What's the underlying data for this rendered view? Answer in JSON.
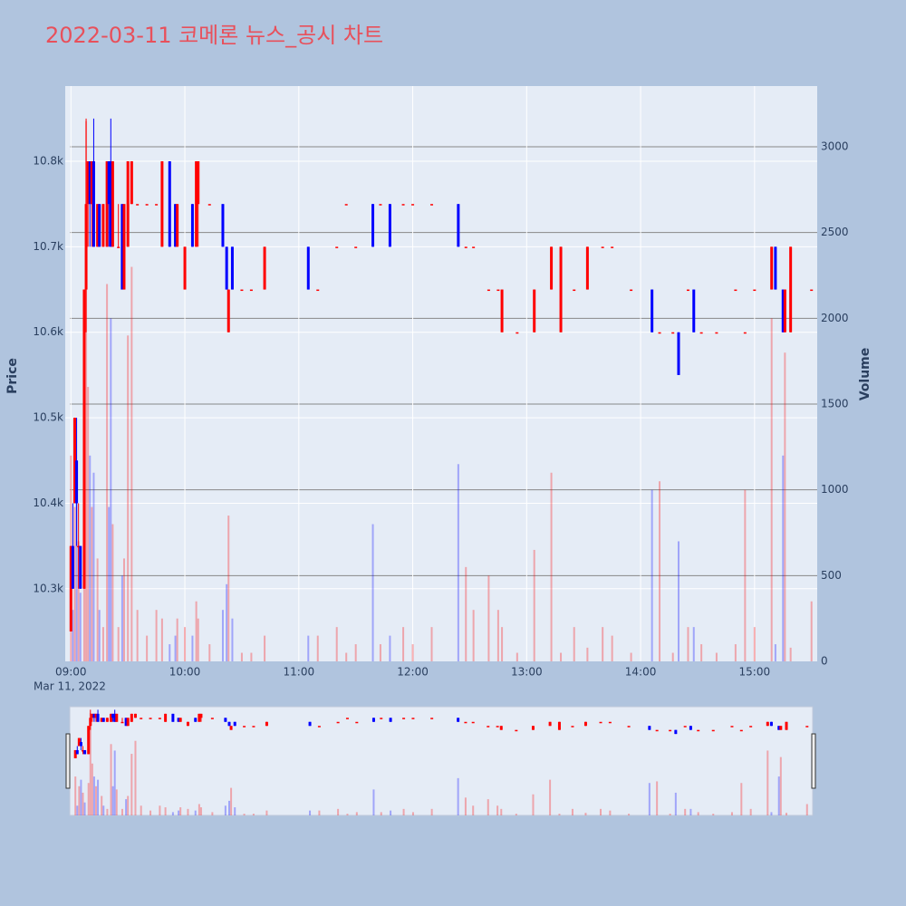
{
  "chart_data": {
    "type": "candlestick",
    "title": "2022-03-11 코메론 뉴스_공시 차트",
    "ylabel": "Price",
    "y2label": "Volume",
    "x_date_label": "Mar 11, 2022",
    "increasing_color": "#ff0000",
    "decreasing_color": "#0000ff",
    "xlim": [
      "2022-03-11 08:57",
      "2022-03-11 15:33"
    ],
    "xticks": [
      {
        "value": "2022-03-11 09:00",
        "label": "09:00"
      },
      {
        "value": "2022-03-11 10:00",
        "label": "10:00"
      },
      {
        "value": "2022-03-11 11:00",
        "label": "11:00"
      },
      {
        "value": "2022-03-11 12:00",
        "label": "12:00"
      },
      {
        "value": "2022-03-11 13:00",
        "label": "13:00"
      },
      {
        "value": "2022-03-11 14:00",
        "label": "14:00"
      },
      {
        "value": "2022-03-11 15:00",
        "label": "15:00"
      }
    ],
    "ylim": [
      10215,
      10888
    ],
    "yticks": [
      {
        "value": 10300,
        "label": "10.3k"
      },
      {
        "value": 10400,
        "label": "10.4k"
      },
      {
        "value": 10500,
        "label": "10.5k"
      },
      {
        "value": 10600,
        "label": "10.6k"
      },
      {
        "value": 10700,
        "label": "10.7k"
      },
      {
        "value": 10800,
        "label": "10.8k"
      }
    ],
    "y2lim": [
      0,
      3354
    ],
    "y2ticks": [
      0,
      500,
      1000,
      1500,
      2000,
      2500,
      3000
    ],
    "rangeslider": true,
    "x": [
      "2022-03-11 09:00",
      "2022-03-11 09:01",
      "2022-03-11 09:02",
      "2022-03-11 09:03",
      "2022-03-11 09:04",
      "2022-03-11 09:05",
      "2022-03-11 09:07",
      "2022-03-11 09:08",
      "2022-03-11 09:09",
      "2022-03-11 09:10",
      "2022-03-11 09:11",
      "2022-03-11 09:12",
      "2022-03-11 09:14",
      "2022-03-11 09:15",
      "2022-03-11 09:17",
      "2022-03-11 09:19",
      "2022-03-11 09:20",
      "2022-03-11 09:21",
      "2022-03-11 09:22",
      "2022-03-11 09:25",
      "2022-03-11 09:27",
      "2022-03-11 09:28",
      "2022-03-11 09:30",
      "2022-03-11 09:32",
      "2022-03-11 09:35",
      "2022-03-11 09:40",
      "2022-03-11 09:45",
      "2022-03-11 09:48",
      "2022-03-11 09:52",
      "2022-03-11 09:55",
      "2022-03-11 09:56",
      "2022-03-11 10:00",
      "2022-03-11 10:04",
      "2022-03-11 10:06",
      "2022-03-11 10:07",
      "2022-03-11 10:13",
      "2022-03-11 10:20",
      "2022-03-11 10:22",
      "2022-03-11 10:23",
      "2022-03-11 10:25",
      "2022-03-11 10:30",
      "2022-03-11 10:35",
      "2022-03-11 10:42",
      "2022-03-11 11:05",
      "2022-03-11 11:10",
      "2022-03-11 11:20",
      "2022-03-11 11:25",
      "2022-03-11 11:30",
      "2022-03-11 11:39",
      "2022-03-11 11:43",
      "2022-03-11 11:48",
      "2022-03-11 11:55",
      "2022-03-11 12:00",
      "2022-03-11 12:10",
      "2022-03-11 12:24",
      "2022-03-11 12:28",
      "2022-03-11 12:32",
      "2022-03-11 12:40",
      "2022-03-11 12:45",
      "2022-03-11 12:47",
      "2022-03-11 12:55",
      "2022-03-11 13:04",
      "2022-03-11 13:13",
      "2022-03-11 13:18",
      "2022-03-11 13:25",
      "2022-03-11 13:32",
      "2022-03-11 13:40",
      "2022-03-11 13:45",
      "2022-03-11 13:55",
      "2022-03-11 14:06",
      "2022-03-11 14:10",
      "2022-03-11 14:17",
      "2022-03-11 14:20",
      "2022-03-11 14:25",
      "2022-03-11 14:28",
      "2022-03-11 14:32",
      "2022-03-11 14:40",
      "2022-03-11 14:50",
      "2022-03-11 14:55",
      "2022-03-11 15:00",
      "2022-03-11 15:09",
      "2022-03-11 15:11",
      "2022-03-11 15:15",
      "2022-03-11 15:16",
      "2022-03-11 15:19",
      "2022-03-11 15:30"
    ],
    "open": [
      10250,
      10350,
      10400,
      10450,
      10350,
      10350,
      10300,
      10650,
      10750,
      10800,
      10750,
      10800,
      10700,
      10750,
      10700,
      10700,
      10800,
      10800,
      10700,
      10700,
      10750,
      10650,
      10700,
      10750,
      10750,
      10750,
      10750,
      10700,
      10800,
      10750,
      10700,
      10650,
      10750,
      10700,
      10750,
      10750,
      10750,
      10700,
      10600,
      10700,
      10650,
      10650,
      10650,
      10700,
      10650,
      10700,
      10750,
      10700,
      10750,
      10750,
      10750,
      10750,
      10750,
      10750,
      10750,
      10700,
      10700,
      10650,
      10650,
      10600,
      10600,
      10600,
      10650,
      10600,
      10650,
      10650,
      10700,
      10700,
      10650,
      10650,
      10600,
      10600,
      10600,
      10650,
      10650,
      10600,
      10600,
      10650,
      10600,
      10650,
      10650,
      10700,
      10650,
      10600,
      10600,
      10650
    ],
    "high": [
      10350,
      10400,
      10500,
      10500,
      10400,
      10350,
      10650,
      10850,
      10800,
      10800,
      10800,
      10850,
      10750,
      10750,
      10750,
      10800,
      10800,
      10850,
      10800,
      10750,
      10750,
      10750,
      10800,
      10800,
      10750,
      10750,
      10750,
      10800,
      10800,
      10750,
      10750,
      10700,
      10750,
      10800,
      10800,
      10750,
      10750,
      10700,
      10650,
      10700,
      10650,
      10650,
      10700,
      10700,
      10650,
      10700,
      10750,
      10700,
      10750,
      10750,
      10750,
      10750,
      10750,
      10750,
      10750,
      10700,
      10700,
      10650,
      10650,
      10650,
      10600,
      10650,
      10700,
      10700,
      10650,
      10700,
      10700,
      10700,
      10650,
      10650,
      10600,
      10600,
      10600,
      10650,
      10650,
      10600,
      10600,
      10650,
      10600,
      10650,
      10700,
      10700,
      10650,
      10650,
      10700,
      10650
    ],
    "low": [
      10250,
      10300,
      10400,
      10350,
      10300,
      10300,
      10300,
      10600,
      10700,
      10700,
      10700,
      10700,
      10700,
      10700,
      10700,
      10700,
      10700,
      10700,
      10700,
      10700,
      10650,
      10650,
      10700,
      10750,
      10750,
      10750,
      10750,
      10700,
      10700,
      10700,
      10700,
      10650,
      10700,
      10700,
      10700,
      10750,
      10700,
      10650,
      10600,
      10650,
      10650,
      10650,
      10650,
      10650,
      10650,
      10700,
      10750,
      10700,
      10700,
      10750,
      10700,
      10750,
      10750,
      10750,
      10700,
      10700,
      10700,
      10650,
      10650,
      10600,
      10600,
      10600,
      10650,
      10600,
      10650,
      10650,
      10700,
      10700,
      10650,
      10600,
      10600,
      10600,
      10550,
      10650,
      10600,
      10600,
      10600,
      10650,
      10600,
      10650,
      10650,
      10650,
      10600,
      10600,
      10600,
      10650
    ],
    "close": [
      10350,
      10300,
      10500,
      10400,
      10350,
      10300,
      10650,
      10750,
      10800,
      10750,
      10800,
      10700,
      10750,
      10700,
      10750,
      10800,
      10750,
      10700,
      10800,
      10700,
      10650,
      10750,
      10800,
      10800,
      10750,
      10750,
      10750,
      10800,
      10700,
      10700,
      10750,
      10700,
      10700,
      10800,
      10800,
      10750,
      10700,
      10650,
      10650,
      10650,
      10650,
      10650,
      10700,
      10650,
      10650,
      10700,
      10750,
      10700,
      10700,
      10750,
      10700,
      10750,
      10750,
      10750,
      10700,
      10700,
      10700,
      10650,
      10650,
      10650,
      10600,
      10650,
      10700,
      10700,
      10650,
      10700,
      10700,
      10700,
      10650,
      10600,
      10600,
      10600,
      10550,
      10650,
      10600,
      10600,
      10600,
      10650,
      10600,
      10650,
      10700,
      10650,
      10600,
      10650,
      10700,
      10650
    ],
    "volume": [
      1200,
      300,
      900,
      1100,
      700,
      400,
      1000,
      3150,
      1600,
      1200,
      900,
      1100,
      600,
      300,
      200,
      2200,
      900,
      2000,
      800,
      200,
      500,
      600,
      1900,
      2300,
      300,
      150,
      300,
      250,
      100,
      150,
      250,
      200,
      150,
      350,
      250,
      100,
      300,
      450,
      850,
      250,
      50,
      50,
      150,
      150,
      150,
      200,
      50,
      100,
      800,
      100,
      150,
      200,
      100,
      200,
      1150,
      550,
      300,
      500,
      300,
      200,
      50,
      650,
      1100,
      50,
      200,
      80,
      200,
      150,
      50,
      1000,
      1050,
      50,
      700,
      200,
      200,
      100,
      50,
      100,
      1000,
      200,
      2000,
      100,
      1200,
      1800,
      80,
      350
    ]
  }
}
